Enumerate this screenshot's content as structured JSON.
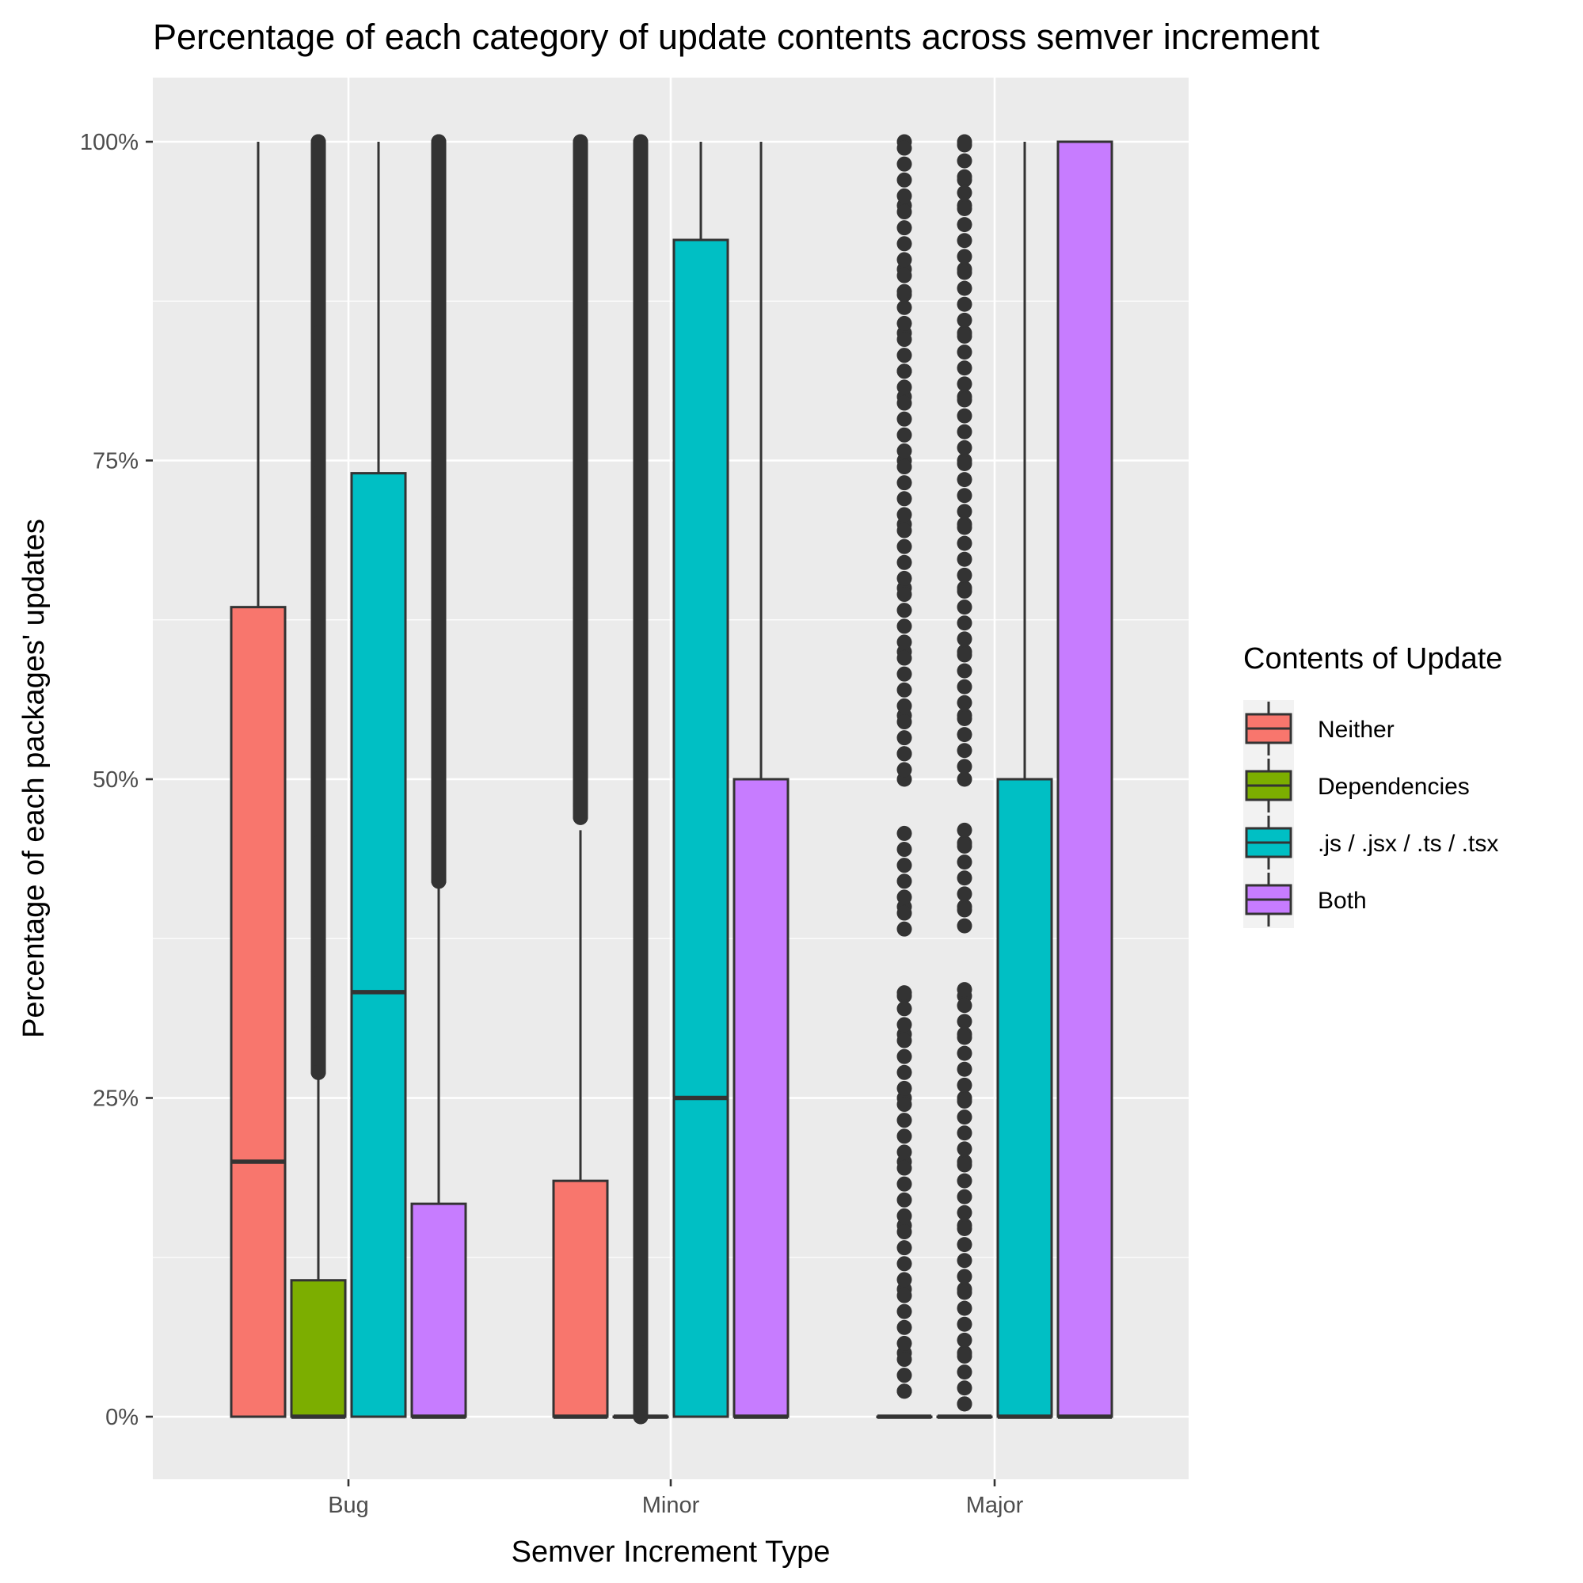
{
  "chart_data": {
    "type": "boxplot",
    "title": "Percentage of each category of update contents across semver increment",
    "xlabel": "Semver Increment Type",
    "ylabel": "Percentage of each packages' updates",
    "categories": [
      "Bug",
      "Minor",
      "Major"
    ],
    "y_ticks": [
      "0%",
      "25%",
      "50%",
      "75%",
      "100%"
    ],
    "ylim": [
      -0.05,
      1.05
    ],
    "grid": true,
    "legend": {
      "title": "Contents of Update",
      "placement": "right",
      "entries": [
        "Neither",
        "Dependencies",
        ".js / .jsx / .ts / .tsx",
        "Both"
      ]
    },
    "series": [
      {
        "name": "Neither",
        "color": "#F8766D",
        "boxes": [
          {
            "category": "Bug",
            "min": 0,
            "q1": 0,
            "median": 0.2,
            "q3": 0.635,
            "max": 1.0,
            "outliers": []
          },
          {
            "category": "Minor",
            "min": 0,
            "q1": 0,
            "median": 0,
            "q3": 0.185,
            "max": 0.46,
            "outliers": [
              0.47,
              0.48,
              0.5,
              0.52,
              0.55,
              0.6,
              0.65,
              0.7,
              0.75,
              0.8,
              0.85,
              0.9,
              0.95,
              1.0
            ]
          },
          {
            "category": "Major",
            "min": 0,
            "q1": 0,
            "median": 0,
            "q3": 0,
            "max": 0,
            "outliers": [
              0.02,
              0.05,
              0.1,
              0.15,
              0.2,
              0.25,
              0.3,
              0.33,
              0.4,
              0.5,
              0.52,
              0.55,
              0.6,
              0.65,
              0.7,
              0.75,
              0.8,
              0.82,
              0.85,
              0.88,
              0.9,
              0.95,
              1.0
            ]
          }
        ]
      },
      {
        "name": "Dependencies",
        "color": "#7CAE00",
        "boxes": [
          {
            "category": "Bug",
            "min": 0,
            "q1": 0,
            "median": 0,
            "q3": 0.107,
            "max": 0.265,
            "outliers": [
              0.27,
              0.3,
              0.35,
              0.4,
              0.45,
              0.5,
              0.55,
              0.6,
              0.65,
              0.7,
              0.75,
              0.8,
              0.85,
              0.9,
              0.95,
              1.0
            ]
          },
          {
            "category": "Minor",
            "min": 0,
            "q1": 0,
            "median": 0,
            "q3": 0,
            "max": 0,
            "outliers": [
              0.0,
              0.05,
              0.1,
              0.2,
              0.3,
              0.4,
              0.5,
              0.6,
              0.7,
              0.8,
              0.9,
              1.0
            ]
          },
          {
            "category": "Major",
            "min": 0,
            "q1": 0,
            "median": 0,
            "q3": 0,
            "max": 0,
            "outliers": [
              0.01,
              0.05,
              0.1,
              0.15,
              0.2,
              0.25,
              0.3,
              0.33,
              0.4,
              0.45,
              0.5,
              0.55,
              0.6,
              0.65,
              0.7,
              0.75,
              0.8,
              0.85,
              0.9,
              0.95,
              0.97,
              1.0
            ]
          }
        ]
      },
      {
        "name": ".js / .jsx / .ts / .tsx",
        "color": "#00BFC4",
        "boxes": [
          {
            "category": "Bug",
            "min": 0,
            "q1": 0,
            "median": 0.333,
            "q3": 0.74,
            "max": 1.0,
            "outliers": []
          },
          {
            "category": "Minor",
            "min": 0,
            "q1": 0,
            "median": 0.25,
            "q3": 0.923,
            "max": 1.0,
            "outliers": []
          },
          {
            "category": "Major",
            "min": 0,
            "q1": 0,
            "median": 0,
            "q3": 0.5,
            "max": 1.0,
            "outliers": []
          }
        ]
      },
      {
        "name": "Both",
        "color": "#C77CFF",
        "boxes": [
          {
            "category": "Bug",
            "min": 0,
            "q1": 0,
            "median": 0,
            "q3": 0.167,
            "max": 0.415,
            "outliers": [
              0.42,
              0.45,
              0.5,
              0.55,
              0.6,
              0.65,
              0.7,
              0.75,
              0.8,
              0.85,
              0.9,
              0.95,
              1.0
            ]
          },
          {
            "category": "Minor",
            "min": 0,
            "q1": 0,
            "median": 0,
            "q3": 0.5,
            "max": 1.0,
            "outliers": []
          },
          {
            "category": "Major",
            "min": 0,
            "q1": 0,
            "median": 0,
            "q3": 1.0,
            "max": 1.0,
            "outliers": []
          }
        ]
      }
    ]
  }
}
